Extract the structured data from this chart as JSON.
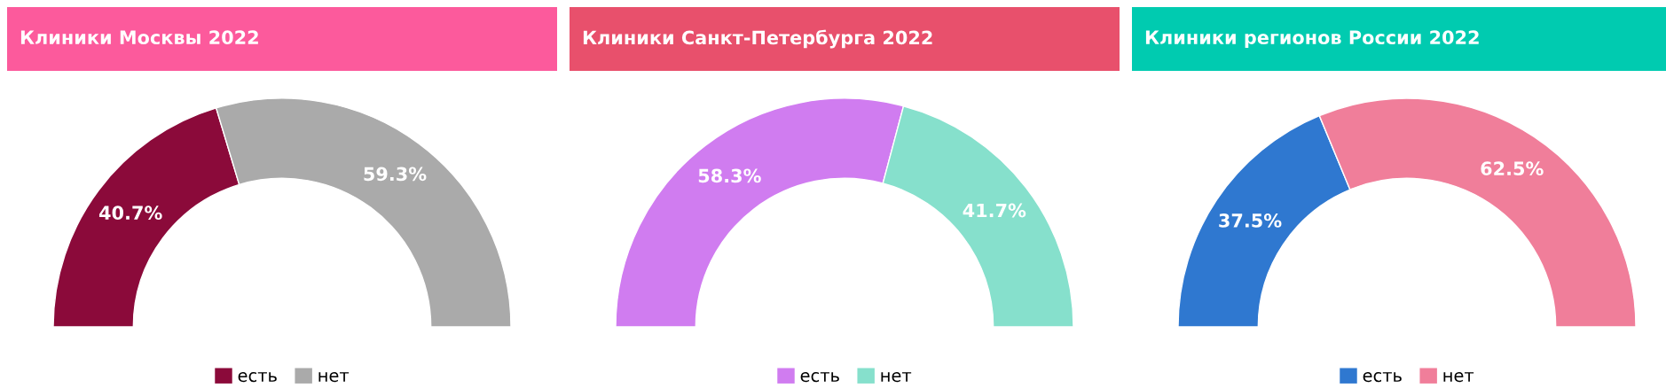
{
  "chart_data": [
    {
      "type": "donut",
      "title": "Клиники Москвы 2022",
      "categories": [
        "есть",
        "нет"
      ],
      "values": [
        40.7,
        59.3
      ],
      "colors": [
        "#8b0a3a",
        "#aaaaaa"
      ],
      "value_labels": [
        "40.7%",
        "59.3%"
      ],
      "legend": "bottom"
    },
    {
      "type": "donut",
      "title": "Клиники Санкт-Петербурга 2022",
      "categories": [
        "есть",
        "нет"
      ],
      "values": [
        58.3,
        41.7
      ],
      "colors": [
        "#d07cf0",
        "#86e0cc"
      ],
      "value_labels": [
        "58.3%",
        "41.7%"
      ],
      "legend": "bottom"
    },
    {
      "type": "donut",
      "title": "Клиники регионов России 2022",
      "categories": [
        "есть",
        "нет"
      ],
      "values": [
        37.5,
        62.5
      ],
      "colors": [
        "#2f78d0",
        "#f07e9a"
      ],
      "value_labels": [
        "37.5%",
        "62.5%"
      ],
      "legend": "bottom"
    }
  ]
}
